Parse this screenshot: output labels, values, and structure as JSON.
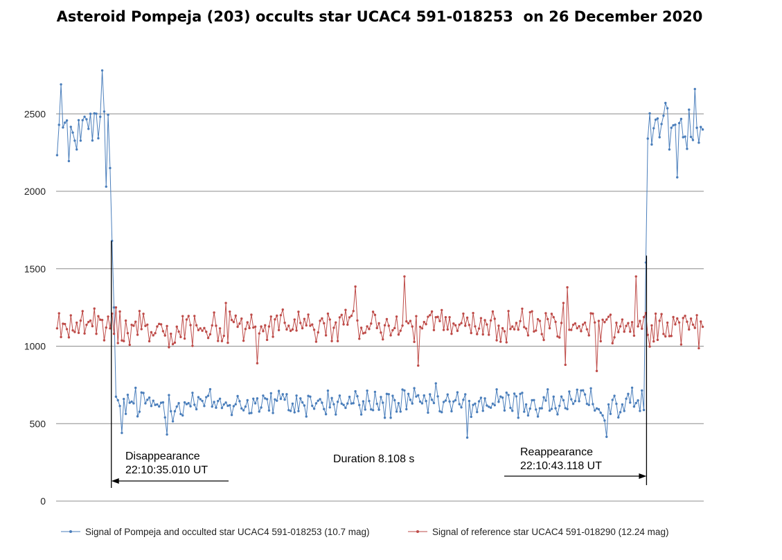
{
  "chart_data": {
    "type": "line",
    "title": "Asteroid Pompeja (203) occults star UCAC4 591-018253  on 26 December 2020",
    "xlabel": "",
    "ylabel": "",
    "ylim": [
      0,
      2900
    ],
    "yticks": [
      0,
      500,
      1000,
      1500,
      2000,
      2500
    ],
    "grid": true,
    "legend_position": "bottom",
    "x_count": 330,
    "series": [
      {
        "name": "Signal of Pompeja and occulted star UCAC4 591-018253 (10.7 mag)",
        "color": "#4a7ebb",
        "segments": [
          {
            "x": [
              0,
              27
            ],
            "mean": 2400,
            "amp": 170
          },
          {
            "x": [
              28,
              29
            ],
            "values": [
              1680,
              1250
            ]
          },
          {
            "x": [
              30,
              299
            ],
            "mean": 630,
            "amp": 95
          },
          {
            "x": [
              300,
              301
            ],
            "values": [
              1540,
              2340
            ]
          },
          {
            "x": [
              302,
              329
            ],
            "mean": 2430,
            "amp": 140
          }
        ],
        "extremes": [
          {
            "x": 2,
            "value": 2690
          },
          {
            "x": 6,
            "value": 2195
          },
          {
            "x": 23,
            "value": 2780
          },
          {
            "x": 25,
            "value": 2030
          },
          {
            "x": 27,
            "value": 2150
          },
          {
            "x": 33,
            "value": 440
          },
          {
            "x": 56,
            "value": 430
          },
          {
            "x": 209,
            "value": 410
          },
          {
            "x": 280,
            "value": 415
          },
          {
            "x": 316,
            "value": 2090
          },
          {
            "x": 325,
            "value": 2660
          }
        ]
      },
      {
        "name": "Signal of reference star UCAC4 591-018290 (12.24 mag)",
        "color": "#be4b48",
        "segments": [
          {
            "x": [
              0,
              329
            ],
            "mean": 1130,
            "amp": 110
          }
        ],
        "extremes": [
          {
            "x": 177,
            "value": 1450
          },
          {
            "x": 152,
            "value": 1385
          },
          {
            "x": 260,
            "value": 1380
          },
          {
            "x": 295,
            "value": 1450
          },
          {
            "x": 184,
            "value": 875
          },
          {
            "x": 275,
            "value": 840
          },
          {
            "x": 102,
            "value": 890
          },
          {
            "x": 259,
            "value": 880
          }
        ]
      }
    ],
    "annotations": {
      "disappearance_label": "Disappearance",
      "disappearance_time": "22:10:35.010 UT",
      "duration": "Duration 8.108 s",
      "reappearance_label": "Reappearance",
      "reappearance_time": "22:10:43.118 UT",
      "disappearance_x": 28,
      "reappearance_x": 300
    }
  }
}
